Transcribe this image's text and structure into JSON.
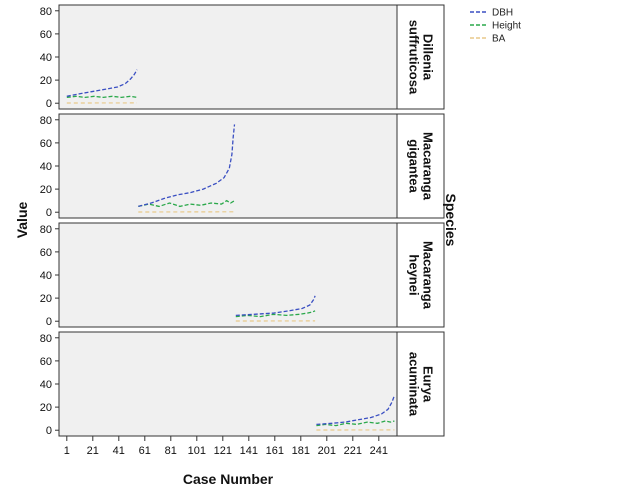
{
  "chart_data": {
    "type": "line",
    "xlabel": "Case Number",
    "ylabel": "Value",
    "facet_label": "Species",
    "x_ticks": [
      1,
      21,
      41,
      61,
      81,
      101,
      121,
      141,
      161,
      181,
      201,
      221,
      241
    ],
    "y_ticks": [
      0,
      20,
      40,
      60,
      80
    ],
    "xlim": [
      -5,
      255
    ],
    "ylim": [
      -5,
      85
    ],
    "grid": false,
    "legend_position": "top-right",
    "series": [
      {
        "name": "DBH",
        "color": "#3a4fc2",
        "style": "dashed"
      },
      {
        "name": "Height",
        "color": "#2aa84a",
        "style": "dashed"
      },
      {
        "name": "BA",
        "color": "#e8c98a",
        "style": "dashed"
      }
    ],
    "panels": [
      {
        "species": "Dillenia suffruticosa",
        "x_range": [
          1,
          55
        ],
        "dbh": [
          [
            1,
            6
          ],
          [
            10,
            8
          ],
          [
            20,
            10
          ],
          [
            30,
            12
          ],
          [
            40,
            14
          ],
          [
            46,
            17
          ],
          [
            50,
            21
          ],
          [
            53,
            25
          ],
          [
            55,
            29
          ]
        ],
        "height": [
          [
            1,
            5
          ],
          [
            8,
            6
          ],
          [
            15,
            5
          ],
          [
            22,
            6
          ],
          [
            29,
            5
          ],
          [
            36,
            6
          ],
          [
            43,
            5
          ],
          [
            50,
            6
          ],
          [
            55,
            5
          ]
        ],
        "ba": [
          [
            1,
            0.2
          ],
          [
            55,
            0.3
          ]
        ]
      },
      {
        "species": "Macaranga gigantea",
        "x_range": [
          56,
          130
        ],
        "dbh": [
          [
            56,
            5
          ],
          [
            66,
            8
          ],
          [
            76,
            12
          ],
          [
            86,
            15
          ],
          [
            96,
            17
          ],
          [
            106,
            20
          ],
          [
            116,
            25
          ],
          [
            122,
            30
          ],
          [
            126,
            38
          ],
          [
            128,
            50
          ],
          [
            129,
            65
          ],
          [
            130,
            76
          ]
        ],
        "height": [
          [
            56,
            5
          ],
          [
            64,
            7
          ],
          [
            72,
            5
          ],
          [
            80,
            8
          ],
          [
            88,
            5
          ],
          [
            96,
            7
          ],
          [
            104,
            6
          ],
          [
            112,
            8
          ],
          [
            120,
            7
          ],
          [
            124,
            10
          ],
          [
            127,
            8
          ],
          [
            130,
            10
          ]
        ],
        "ba": [
          [
            56,
            0.2
          ],
          [
            130,
            0.4
          ]
        ]
      },
      {
        "species": "Macaranga heynei",
        "x_range": [
          131,
          192
        ],
        "dbh": [
          [
            131,
            5
          ],
          [
            145,
            6
          ],
          [
            160,
            7
          ],
          [
            172,
            9
          ],
          [
            182,
            11
          ],
          [
            188,
            14
          ],
          [
            191,
            19
          ],
          [
            192,
            22
          ]
        ],
        "height": [
          [
            131,
            4
          ],
          [
            140,
            5
          ],
          [
            150,
            4
          ],
          [
            160,
            6
          ],
          [
            170,
            5
          ],
          [
            180,
            6
          ],
          [
            186,
            7
          ],
          [
            190,
            8
          ],
          [
            192,
            9
          ]
        ],
        "ba": [
          [
            131,
            0.2
          ],
          [
            192,
            0.3
          ]
        ]
      },
      {
        "species": "Eurya acuminata",
        "x_range": [
          193,
          255
        ],
        "dbh": [
          [
            193,
            5
          ],
          [
            205,
            6
          ],
          [
            215,
            7
          ],
          [
            225,
            9
          ],
          [
            235,
            11
          ],
          [
            243,
            14
          ],
          [
            248,
            18
          ],
          [
            251,
            24
          ],
          [
            253,
            30
          ]
        ],
        "height": [
          [
            193,
            4
          ],
          [
            200,
            5
          ],
          [
            208,
            4
          ],
          [
            216,
            6
          ],
          [
            224,
            5
          ],
          [
            232,
            7
          ],
          [
            240,
            6
          ],
          [
            246,
            8
          ],
          [
            250,
            7
          ],
          [
            253,
            8
          ]
        ],
        "ba": [
          [
            193,
            0.2
          ],
          [
            253,
            0.3
          ]
        ]
      }
    ]
  }
}
